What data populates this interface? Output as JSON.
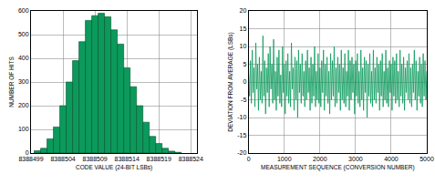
{
  "chart_data": [
    {
      "type": "histogram",
      "x_label": "CODE VALUE (24-BIT LSBs)",
      "y_label": "NUMBER OF HITS",
      "bins": [
        8388499.5,
        8388500.5,
        8388501.5,
        8388502.5,
        8388503.5,
        8388504.5,
        8388505.5,
        8388506.5,
        8388507.5,
        8388508.5,
        8388509.5,
        8388510.5,
        8388511.5,
        8388512.5,
        8388513.5,
        8388514.5,
        8388515.5,
        8388516.5,
        8388517.5,
        8388518.5,
        8388519.5,
        8388520.5,
        8388521.5,
        8388522.5
      ],
      "values": [
        10,
        20,
        60,
        110,
        200,
        300,
        390,
        470,
        560,
        580,
        590,
        575,
        520,
        460,
        360,
        280,
        200,
        130,
        70,
        40,
        20,
        8,
        3
      ],
      "color": "#0b9a5c",
      "xlim": [
        8388499,
        8388525
      ],
      "xticks": [
        8388499,
        8388504,
        8388509,
        8388514,
        8388519,
        8388524
      ],
      "ylim": [
        0,
        600
      ],
      "yticks": [
        0,
        100,
        200,
        300,
        400,
        500,
        600
      ],
      "grid": true
    },
    {
      "type": "line",
      "x_label": "MEASUREMENT SEQUENCE (CONVERSION NUMBER)",
      "y_label": "DEVIATION FROM AVERAGE (LSBs)",
      "x": [
        0,
        25,
        50,
        75,
        100,
        125,
        150,
        175,
        200,
        225,
        250,
        275,
        300,
        325,
        350,
        375,
        400,
        425,
        450,
        475,
        500,
        525,
        550,
        575,
        600,
        625,
        650,
        675,
        700,
        725,
        750,
        775,
        800,
        825,
        850,
        875,
        900,
        925,
        950,
        975,
        1000,
        1025,
        1050,
        1075,
        1100,
        1125,
        1150,
        1175,
        1200,
        1225,
        1250,
        1275,
        1300,
        1325,
        1350,
        1375,
        1400,
        1425,
        1450,
        1475,
        1500,
        1525,
        1550,
        1575,
        1600,
        1625,
        1650,
        1675,
        1700,
        1725,
        1750,
        1775,
        1800,
        1825,
        1850,
        1875,
        1900,
        1925,
        1950,
        1975,
        2000,
        2025,
        2050,
        2075,
        2100,
        2125,
        2150,
        2175,
        2200,
        2225,
        2250,
        2275,
        2300,
        2325,
        2350,
        2375,
        2400,
        2425,
        2450,
        2475,
        2500,
        2525,
        2550,
        2575,
        2600,
        2625,
        2650,
        2675,
        2700,
        2725,
        2750,
        2775,
        2800,
        2825,
        2850,
        2875,
        2900,
        2925,
        2950,
        2975,
        3000,
        3025,
        3050,
        3075,
        3100,
        3125,
        3150,
        3175,
        3200,
        3225,
        3250,
        3275,
        3300,
        3325,
        3350,
        3375,
        3400,
        3425,
        3450,
        3475,
        3500,
        3525,
        3550,
        3575,
        3600,
        3625,
        3650,
        3675,
        3700,
        3725,
        3750,
        3775,
        3800,
        3825,
        3850,
        3875,
        3900,
        3925,
        3950,
        3975,
        4000,
        4025,
        4050,
        4075,
        4100,
        4125,
        4150,
        4175,
        4200,
        4225,
        4250,
        4275,
        4300,
        4325,
        4350,
        4375,
        4400,
        4425,
        4450,
        4475,
        4500,
        4525,
        4550,
        4575,
        4600,
        4625,
        4650,
        4675,
        4700,
        4725,
        4750,
        4775,
        4800,
        4825,
        4850,
        4875,
        4900,
        4925,
        4950,
        4975,
        5000
      ],
      "values": [
        2,
        -4,
        6,
        -6,
        9,
        -3,
        4,
        -7,
        11,
        -2,
        5,
        -8,
        7,
        -5,
        3,
        -6,
        13,
        -4,
        6,
        -9,
        4,
        -3,
        8,
        -7,
        10,
        -2,
        5,
        -6,
        12,
        -5,
        3,
        -8,
        7,
        -4,
        9,
        -6,
        2,
        -7,
        10,
        -3,
        5,
        -9,
        6,
        -4,
        8,
        -6,
        3,
        -7,
        11,
        -2,
        4,
        -8,
        7,
        -5,
        6,
        -10,
        9,
        -3,
        5,
        -6,
        8,
        -4,
        3,
        -7,
        6,
        -5,
        9,
        -3,
        4,
        -8,
        7,
        -6,
        5,
        -4,
        10,
        -7,
        3,
        -5,
        8,
        -6,
        4,
        -7,
        6,
        -3,
        9,
        -8,
        5,
        -4,
        7,
        -6,
        3,
        -9,
        8,
        -5,
        6,
        -4,
        10,
        -7,
        4,
        -6,
        7,
        -3,
        5,
        -8,
        9,
        -5,
        4,
        -6,
        8,
        -7,
        3,
        -4,
        9,
        -8,
        6,
        -5,
        7,
        -3,
        5,
        -9,
        6,
        -4,
        8,
        -6,
        3,
        -7,
        9,
        -5,
        4,
        -8,
        7,
        -3,
        6,
        -10,
        5,
        -4,
        8,
        -6,
        3,
        -7,
        9,
        -5,
        4,
        -6,
        7,
        -3,
        5,
        -8,
        6,
        -4,
        8,
        -7,
        3,
        -5,
        9,
        -6,
        4,
        -7,
        6,
        -3,
        5,
        -8,
        7,
        -4,
        6,
        -6,
        8,
        -5,
        3,
        -7,
        9,
        -4,
        5,
        -6,
        7,
        -8,
        4,
        -3,
        6,
        -5,
        8,
        -6,
        4,
        -7,
        5,
        -3,
        9,
        -5,
        6,
        -8,
        3,
        -4,
        7,
        -6,
        5,
        -7,
        8,
        -4,
        6,
        -5,
        3
      ],
      "color": "#0b9a5c",
      "xlim": [
        0,
        5000
      ],
      "xticks": [
        0,
        1000,
        2000,
        3000,
        4000,
        5000
      ],
      "ylim": [
        -20,
        20
      ],
      "yticks": [
        -20,
        -15,
        -10,
        -5,
        0,
        5,
        10,
        15,
        20
      ],
      "grid": true
    }
  ]
}
